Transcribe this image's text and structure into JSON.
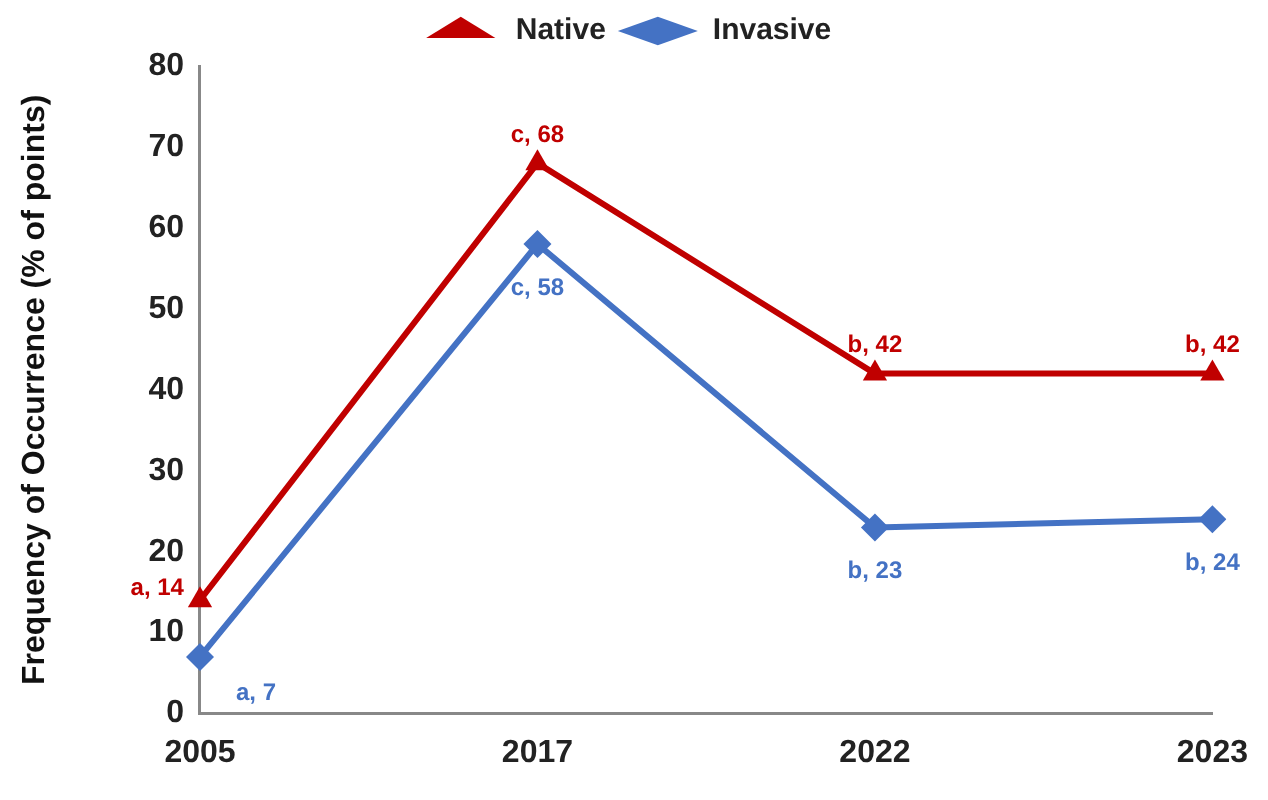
{
  "chart_data": {
    "type": "line",
    "ylabel": "Frequency of Occurrence (% of points)",
    "categories": [
      "2005",
      "2017",
      "2022",
      "2023"
    ],
    "series": [
      {
        "name": "Native",
        "color": "#c00000",
        "marker": "triangle",
        "values": [
          14,
          68,
          42,
          42
        ],
        "value_labels": [
          "a, 14",
          "c, 68",
          "b, 42",
          "b, 42"
        ]
      },
      {
        "name": "Invasive",
        "color": "#4472c4",
        "marker": "diamond",
        "values": [
          7,
          58,
          23,
          24
        ],
        "value_labels": [
          "a, 7",
          "c, 58",
          "b, 23",
          "b, 24"
        ]
      }
    ],
    "ylim": [
      0,
      80
    ],
    "yticks": [
      0,
      10,
      20,
      30,
      40,
      50,
      60,
      70,
      80
    ],
    "grid": false,
    "legend": "top",
    "line_style": "solid"
  }
}
